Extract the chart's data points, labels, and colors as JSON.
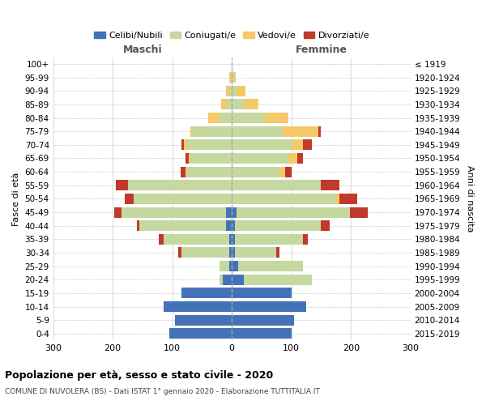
{
  "age_groups": [
    "0-4",
    "5-9",
    "10-14",
    "15-19",
    "20-24",
    "25-29",
    "30-34",
    "35-39",
    "40-44",
    "45-49",
    "50-54",
    "55-59",
    "60-64",
    "65-69",
    "70-74",
    "75-79",
    "80-84",
    "85-89",
    "90-94",
    "95-99",
    "100+"
  ],
  "birth_years": [
    "2015-2019",
    "2010-2014",
    "2005-2009",
    "2000-2004",
    "1995-1999",
    "1990-1994",
    "1985-1989",
    "1980-1984",
    "1975-1979",
    "1970-1974",
    "1965-1969",
    "1960-1964",
    "1955-1959",
    "1950-1954",
    "1945-1949",
    "1940-1944",
    "1935-1939",
    "1930-1934",
    "1925-1929",
    "1920-1924",
    "≤ 1919"
  ],
  "males": {
    "celibi": [
      105,
      95,
      115,
      85,
      15,
      5,
      5,
      5,
      10,
      10,
      0,
      0,
      0,
      0,
      0,
      0,
      0,
      0,
      0,
      0,
      0
    ],
    "coniugati": [
      0,
      0,
      0,
      0,
      5,
      15,
      80,
      110,
      145,
      175,
      165,
      175,
      75,
      70,
      75,
      65,
      20,
      8,
      5,
      2,
      0
    ],
    "vedovi": [
      0,
      0,
      0,
      0,
      0,
      0,
      0,
      0,
      0,
      0,
      0,
      0,
      3,
      3,
      5,
      5,
      20,
      10,
      5,
      2,
      0
    ],
    "divorziati": [
      0,
      0,
      0,
      0,
      0,
      0,
      5,
      8,
      5,
      12,
      15,
      20,
      8,
      5,
      5,
      0,
      0,
      0,
      0,
      0,
      0
    ]
  },
  "females": {
    "nubili": [
      100,
      105,
      125,
      100,
      20,
      10,
      5,
      5,
      5,
      8,
      0,
      0,
      0,
      0,
      0,
      0,
      0,
      0,
      0,
      0,
      0
    ],
    "coniugate": [
      0,
      0,
      0,
      0,
      115,
      110,
      70,
      115,
      145,
      190,
      175,
      150,
      80,
      95,
      100,
      85,
      55,
      20,
      8,
      2,
      0
    ],
    "vedove": [
      0,
      0,
      0,
      0,
      0,
      0,
      0,
      0,
      0,
      0,
      5,
      0,
      10,
      15,
      20,
      60,
      40,
      25,
      15,
      5,
      0
    ],
    "divorziate": [
      0,
      0,
      0,
      0,
      0,
      0,
      5,
      8,
      15,
      30,
      30,
      30,
      10,
      10,
      15,
      5,
      0,
      0,
      0,
      0,
      0
    ]
  },
  "colors": {
    "celibi": "#4472b8",
    "coniugati": "#c5d8a0",
    "vedovi": "#f5c96a",
    "divorziati": "#c0392b"
  },
  "legend_labels": [
    "Celibi/Nubili",
    "Coniugati/e",
    "Vedovi/e",
    "Divorziati/e"
  ],
  "title": "Popolazione per età, sesso e stato civile - 2020",
  "subtitle": "COMUNE DI NUVOLERA (BS) - Dati ISTAT 1° gennaio 2020 - Elaborazione TUTTITALIA.IT",
  "xlabel_left": "Maschi",
  "xlabel_right": "Femmine",
  "ylabel_left": "Fasce di età",
  "ylabel_right": "Anni di nascita",
  "xlim": 300,
  "bg_color": "#ffffff"
}
